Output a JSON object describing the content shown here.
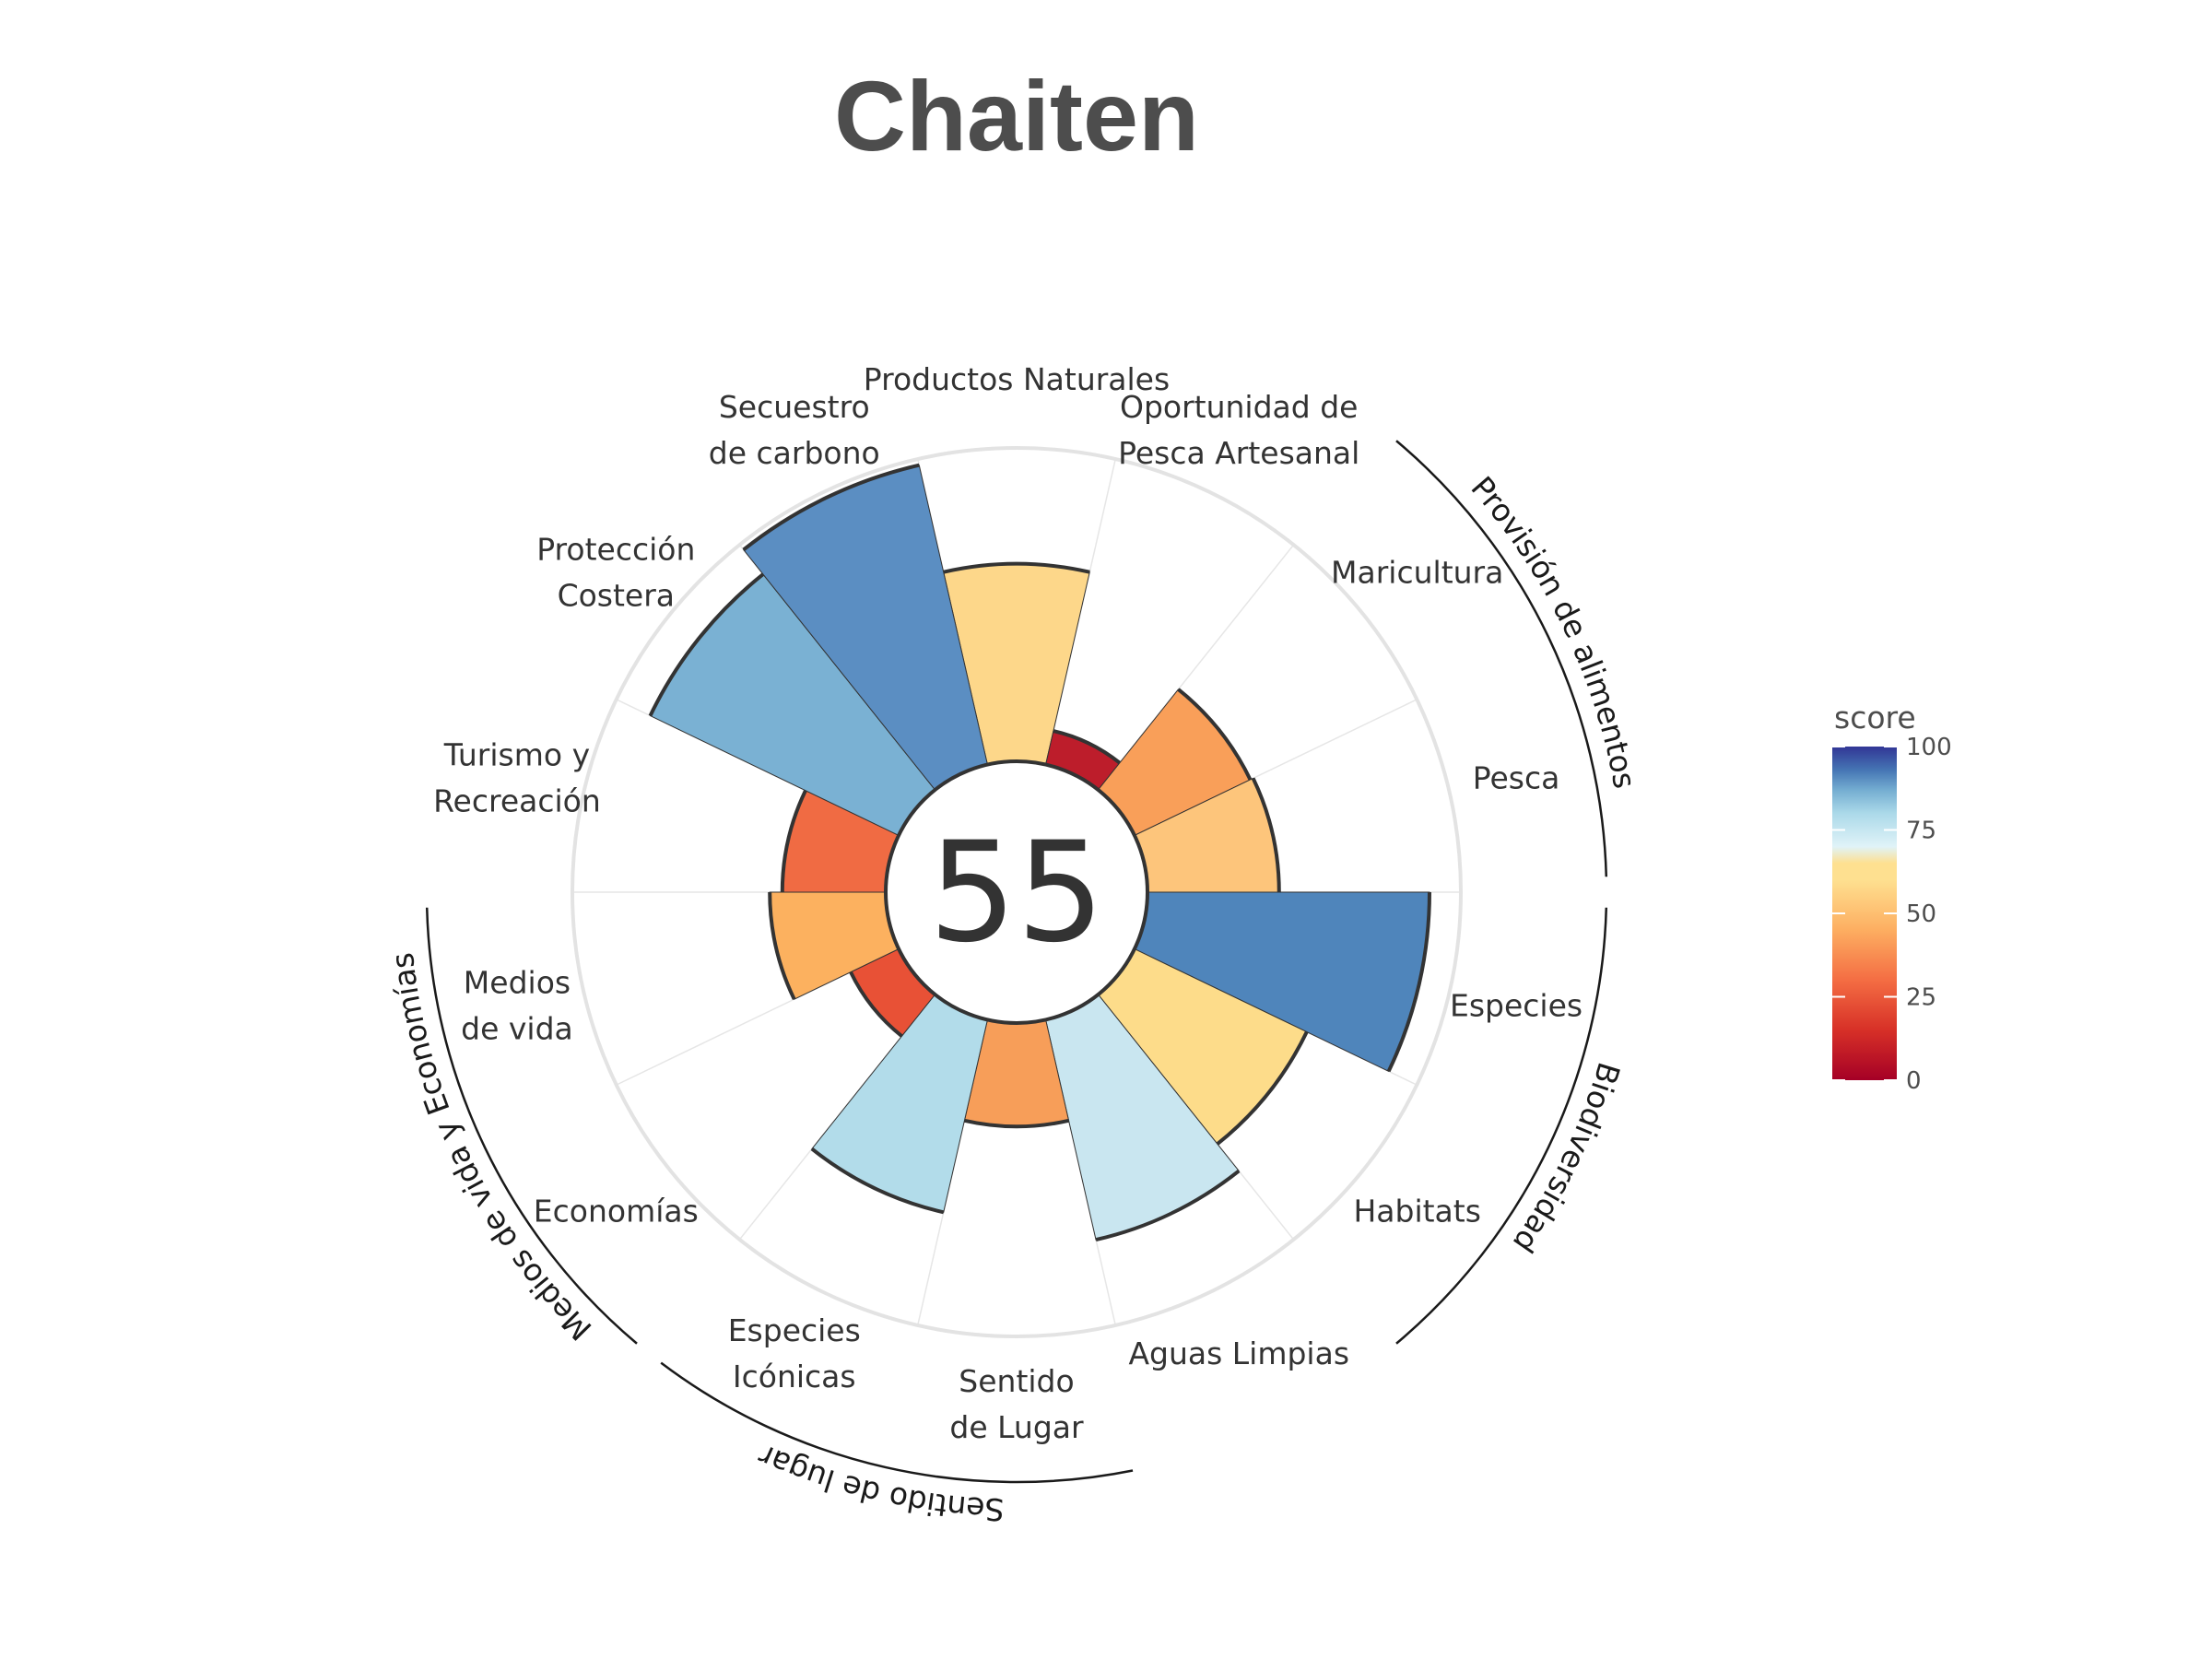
{
  "title": "Chaiten",
  "center_score": "55",
  "legend": {
    "title": "score",
    "ticks": [
      "0",
      "25",
      "50",
      "75",
      "100"
    ],
    "tick_values": [
      0,
      25,
      50,
      75,
      100
    ],
    "stops": [
      {
        "value": 0,
        "color": "#a50026"
      },
      {
        "value": 15,
        "color": "#d73027"
      },
      {
        "value": 30,
        "color": "#f46d43"
      },
      {
        "value": 45,
        "color": "#fdae61"
      },
      {
        "value": 60,
        "color": "#fee090"
      },
      {
        "value": 65,
        "color": "#fee090"
      },
      {
        "value": 70,
        "color": "#e0f3f8"
      },
      {
        "value": 80,
        "color": "#abd9e9"
      },
      {
        "value": 87,
        "color": "#74add1"
      },
      {
        "value": 93,
        "color": "#4575b4"
      },
      {
        "value": 100,
        "color": "#313695"
      }
    ]
  },
  "chart_data": {
    "type": "polar-bar",
    "title": "Chaiten",
    "center_value": 55,
    "rlim": [
      0,
      100
    ],
    "legend_position": "right",
    "categories": [
      {
        "name": "Productos Naturales",
        "label_lines": [
          "Productos Naturales"
        ],
        "score": 63,
        "group": null,
        "color": "#fdd78a"
      },
      {
        "name": "Oportunidad de Pesca Artesanal",
        "label_lines": [
          "Oportunidad de",
          "Pesca Artesanal"
        ],
        "score": 11,
        "group": null,
        "color": "#bd1d2b"
      },
      {
        "name": "Maricultura",
        "label_lines": [
          "Maricultura"
        ],
        "score": 41,
        "group": "Provisión de alimentos",
        "color": "#f99f59"
      },
      {
        "name": "Pesca",
        "label_lines": [
          "Pesca"
        ],
        "score": 42,
        "group": "Provisión de alimentos",
        "color": "#fdc57b"
      },
      {
        "name": "Especies",
        "label_lines": [
          "Especies"
        ],
        "score": 90,
        "group": "Biodiversidad",
        "color": "#4f85bb"
      },
      {
        "name": "Habitats",
        "label_lines": [
          "Habitats"
        ],
        "score": 61,
        "group": "Biodiversidad",
        "color": "#fddc8a"
      },
      {
        "name": "Aguas Limpias",
        "label_lines": [
          "Aguas Limpias"
        ],
        "score": 72,
        "group": null,
        "color": "#c9e6f0"
      },
      {
        "name": "Sentido de Lugar",
        "label_lines": [
          "Sentido",
          "de Lugar"
        ],
        "score": 33,
        "group": "Sentido de lugar",
        "color": "#f79e59"
      },
      {
        "name": "Especies Icónicas",
        "label_lines": [
          "Especies",
          "Icónicas"
        ],
        "score": 63,
        "group": "Sentido de lugar",
        "color": "#b2dcea"
      },
      {
        "name": "Economías",
        "label_lines": [
          "Economías"
        ],
        "score": 17,
        "group": "Medios de vida y Economías",
        "color": "#e85136"
      },
      {
        "name": "Medios de vida",
        "label_lines": [
          "Medios",
          "de vida"
        ],
        "score": 37,
        "group": "Medios de vida y Economías",
        "color": "#fcb15f"
      },
      {
        "name": "Turismo y Recreación",
        "label_lines": [
          "Turismo y",
          "Recreación"
        ],
        "score": 33,
        "group": null,
        "color": "#f06b43"
      },
      {
        "name": "Protección Costera",
        "label_lines": [
          "Protección",
          "Costera"
        ],
        "score": 88,
        "group": null,
        "color": "#7ab1d3"
      },
      {
        "name": "Secuestro de carbono",
        "label_lines": [
          "Secuestro",
          "de carbono"
        ],
        "score": 98,
        "group": null,
        "color": "#5b8ec2"
      }
    ],
    "groups": [
      {
        "name": "Provisión de alimentos"
      },
      {
        "name": "Biodiversidad"
      },
      {
        "name": "Sentido de lugar"
      },
      {
        "name": "Medios de vida y Economías"
      }
    ]
  }
}
